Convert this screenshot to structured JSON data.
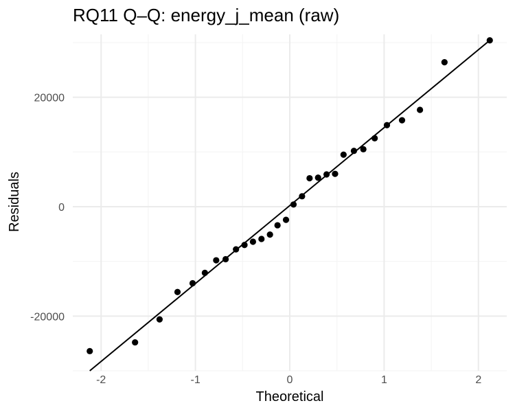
{
  "chart_data": {
    "type": "scatter",
    "title": "RQ11 Q–Q: energy_j_mean (raw)",
    "xlabel": "Theoretical",
    "ylabel": "Residuals",
    "xlim": [
      -2.3,
      2.3
    ],
    "ylim": [
      -30000,
      31500
    ],
    "x_ticks": [
      -2,
      -1,
      0,
      1,
      2
    ],
    "x_tick_labels": [
      "-2",
      "-1",
      "0",
      "1",
      "2"
    ],
    "y_ticks": [
      -20000,
      0,
      20000
    ],
    "y_tick_labels": [
      "-20000",
      "0",
      "20000"
    ],
    "grid": true,
    "colors": {
      "points": "#000000",
      "line": "#000000",
      "grid_major": "#ebebeb",
      "grid_minor": "#f3f3f3"
    },
    "reference_line": {
      "x": [
        -2.12,
        2.12
      ],
      "y": [
        -30000,
        30400
      ]
    },
    "points": {
      "x": [
        -2.12,
        -1.64,
        -1.38,
        -1.19,
        -1.03,
        -0.9,
        -0.78,
        -0.68,
        -0.57,
        -0.48,
        -0.39,
        -0.3,
        -0.21,
        -0.13,
        -0.04,
        0.04,
        0.13,
        0.21,
        0.3,
        0.39,
        0.48,
        0.57,
        0.68,
        0.78,
        0.9,
        1.03,
        1.19,
        1.38,
        1.64,
        2.12
      ],
      "y": [
        -26400,
        -24800,
        -20600,
        -15600,
        -14000,
        -12100,
        -9800,
        -9600,
        -7800,
        -7000,
        -6400,
        -5900,
        -5100,
        -3400,
        -2400,
        400,
        1900,
        5200,
        5300,
        5900,
        6000,
        9500,
        10200,
        10500,
        12500,
        14900,
        15800,
        17700,
        26400,
        30400
      ]
    }
  }
}
